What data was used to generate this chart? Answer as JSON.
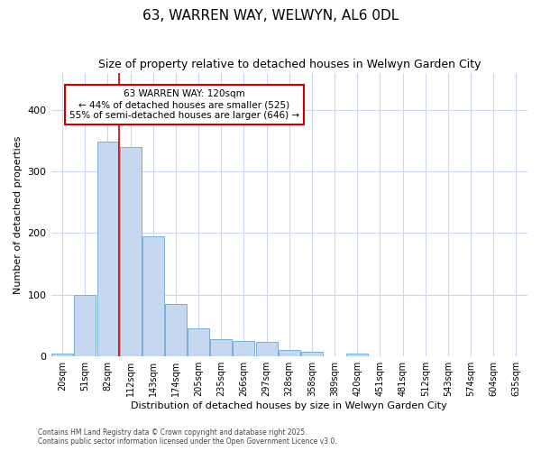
{
  "title": "63, WARREN WAY, WELWYN, AL6 0DL",
  "subtitle": "Size of property relative to detached houses in Welwyn Garden City",
  "xlabel": "Distribution of detached houses by size in Welwyn Garden City",
  "ylabel": "Number of detached properties",
  "categories": [
    "20sqm",
    "51sqm",
    "82sqm",
    "112sqm",
    "143sqm",
    "174sqm",
    "205sqm",
    "235sqm",
    "266sqm",
    "297sqm",
    "328sqm",
    "358sqm",
    "389sqm",
    "420sqm",
    "451sqm",
    "481sqm",
    "512sqm",
    "543sqm",
    "574sqm",
    "604sqm",
    "635sqm"
  ],
  "values": [
    5,
    100,
    348,
    340,
    195,
    85,
    45,
    28,
    25,
    23,
    10,
    8,
    1,
    5,
    1,
    1,
    1,
    1,
    1,
    1,
    1
  ],
  "bar_color": "#c5d8f0",
  "bar_edge_color": "#7aafd4",
  "bar_linewidth": 0.7,
  "bg_color": "#ffffff",
  "grid_color": "#cdd8f0",
  "annotation_text": "63 WARREN WAY: 120sqm\n← 44% of detached houses are smaller (525)\n55% of semi-detached houses are larger (646) →",
  "annotation_box_color": "#ffffff",
  "annotation_box_edge": "#cc0000",
  "vline_color": "#cc0000",
  "vline_x_index": 3.0,
  "title_fontsize": 11,
  "subtitle_fontsize": 9,
  "tick_fontsize": 7,
  "footer_line1": "Contains HM Land Registry data © Crown copyright and database right 2025.",
  "footer_line2": "Contains public sector information licensed under the Open Government Licence v3.0.",
  "ylim": [
    0,
    460
  ]
}
